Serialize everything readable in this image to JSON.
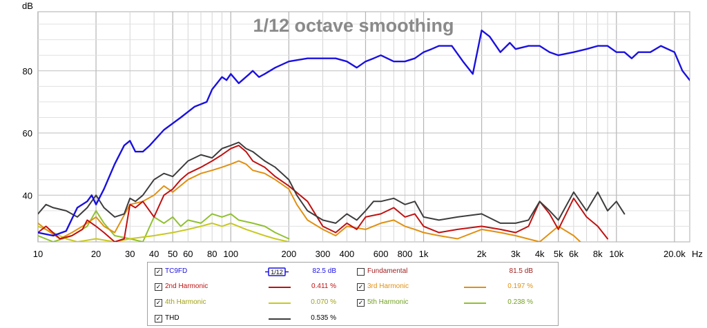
{
  "chart_data": {
    "type": "line",
    "title": "1/12 octave smoothing",
    "ylabel": "dB",
    "xunit": "Hz",
    "xscale": "log",
    "xlim": [
      10,
      24000
    ],
    "ylim": [
      25,
      99
    ],
    "grid": true,
    "x_ticks": [
      {
        "v": 10,
        "label": "10"
      },
      {
        "v": 20,
        "label": "20"
      },
      {
        "v": 30,
        "label": "30"
      },
      {
        "v": 40,
        "label": "40"
      },
      {
        "v": 50,
        "label": "50"
      },
      {
        "v": 60,
        "label": "60"
      },
      {
        "v": 80,
        "label": "80"
      },
      {
        "v": 100,
        "label": "100"
      },
      {
        "v": 200,
        "label": "200"
      },
      {
        "v": 300,
        "label": "300"
      },
      {
        "v": 400,
        "label": "400"
      },
      {
        "v": 600,
        "label": "600"
      },
      {
        "v": 800,
        "label": "800"
      },
      {
        "v": 1000,
        "label": "1k"
      },
      {
        "v": 2000,
        "label": "2k"
      },
      {
        "v": 3000,
        "label": "3k"
      },
      {
        "v": 4000,
        "label": "4k"
      },
      {
        "v": 5000,
        "label": "5k"
      },
      {
        "v": 6000,
        "label": "6k"
      },
      {
        "v": 8000,
        "label": "8k"
      },
      {
        "v": 10000,
        "label": "10k"
      },
      {
        "v": 20000,
        "label": "20.0k"
      }
    ],
    "y_ticks": [
      40,
      60,
      80
    ],
    "series": [
      {
        "name": "TC9FD",
        "color": "#1a10e0",
        "points": [
          [
            10,
            28
          ],
          [
            12,
            27
          ],
          [
            14,
            28.5
          ],
          [
            16,
            36
          ],
          [
            18,
            38
          ],
          [
            19,
            40
          ],
          [
            20,
            37
          ],
          [
            22,
            42
          ],
          [
            25,
            50
          ],
          [
            28,
            56
          ],
          [
            30,
            57.5
          ],
          [
            32,
            54
          ],
          [
            35,
            54
          ],
          [
            38,
            56
          ],
          [
            45,
            61
          ],
          [
            55,
            65
          ],
          [
            65,
            68.5
          ],
          [
            75,
            70
          ],
          [
            80,
            74
          ],
          [
            90,
            78
          ],
          [
            95,
            77
          ],
          [
            100,
            79
          ],
          [
            110,
            76
          ],
          [
            125,
            79
          ],
          [
            130,
            80
          ],
          [
            140,
            78
          ],
          [
            150,
            79
          ],
          [
            170,
            81
          ],
          [
            200,
            83
          ],
          [
            250,
            84
          ],
          [
            300,
            84
          ],
          [
            350,
            84
          ],
          [
            400,
            83
          ],
          [
            450,
            81
          ],
          [
            500,
            83
          ],
          [
            550,
            84
          ],
          [
            600,
            85
          ],
          [
            700,
            83
          ],
          [
            800,
            83
          ],
          [
            900,
            84
          ],
          [
            1000,
            86
          ],
          [
            1100,
            87
          ],
          [
            1200,
            88
          ],
          [
            1400,
            88
          ],
          [
            1600,
            83
          ],
          [
            1800,
            79
          ],
          [
            2000,
            93
          ],
          [
            2200,
            91
          ],
          [
            2500,
            86
          ],
          [
            2800,
            89
          ],
          [
            3000,
            87
          ],
          [
            3500,
            88
          ],
          [
            4000,
            88
          ],
          [
            4500,
            86
          ],
          [
            5000,
            85
          ],
          [
            6000,
            86
          ],
          [
            7000,
            87
          ],
          [
            8000,
            88
          ],
          [
            9000,
            88
          ],
          [
            10000,
            86
          ],
          [
            11000,
            86
          ],
          [
            12000,
            84
          ],
          [
            13000,
            86
          ],
          [
            15000,
            86
          ],
          [
            17000,
            88
          ],
          [
            20000,
            86
          ],
          [
            22000,
            80
          ],
          [
            24000,
            77
          ]
        ]
      },
      {
        "name": "2nd Harmonic",
        "color": "#c01010",
        "points": [
          [
            10,
            28
          ],
          [
            11,
            30
          ],
          [
            13,
            26
          ],
          [
            15,
            27
          ],
          [
            17,
            29
          ],
          [
            18,
            32
          ],
          [
            20,
            30
          ],
          [
            22,
            28
          ],
          [
            25,
            25
          ],
          [
            28,
            26
          ],
          [
            30,
            37
          ],
          [
            32,
            36
          ],
          [
            35,
            38
          ],
          [
            40,
            33
          ],
          [
            45,
            40
          ],
          [
            50,
            42
          ],
          [
            55,
            45
          ],
          [
            60,
            47
          ],
          [
            70,
            49
          ],
          [
            80,
            51
          ],
          [
            90,
            53
          ],
          [
            100,
            55
          ],
          [
            110,
            56
          ],
          [
            120,
            54
          ],
          [
            130,
            51
          ],
          [
            150,
            49
          ],
          [
            170,
            46
          ],
          [
            200,
            43
          ],
          [
            250,
            38
          ],
          [
            300,
            30
          ],
          [
            350,
            28
          ],
          [
            400,
            31
          ],
          [
            450,
            29
          ],
          [
            500,
            33
          ],
          [
            600,
            34
          ],
          [
            700,
            36
          ],
          [
            800,
            33
          ],
          [
            900,
            34
          ],
          [
            1000,
            30
          ],
          [
            1200,
            28
          ],
          [
            1500,
            29
          ],
          [
            2000,
            30
          ],
          [
            2500,
            29
          ],
          [
            3000,
            28
          ],
          [
            3500,
            30
          ],
          [
            4000,
            38
          ],
          [
            4500,
            34
          ],
          [
            5000,
            29
          ],
          [
            6000,
            39
          ],
          [
            7000,
            33
          ],
          [
            8000,
            30
          ],
          [
            9000,
            26
          ]
        ]
      },
      {
        "name": "3rd Harmonic",
        "color": "#e09010",
        "points": [
          [
            10,
            31
          ],
          [
            11,
            29
          ],
          [
            13,
            26
          ],
          [
            15,
            28
          ],
          [
            17,
            30
          ],
          [
            20,
            33
          ],
          [
            22,
            30
          ],
          [
            25,
            28
          ],
          [
            30,
            37
          ],
          [
            35,
            38
          ],
          [
            40,
            40
          ],
          [
            45,
            43
          ],
          [
            50,
            41
          ],
          [
            60,
            45
          ],
          [
            70,
            47
          ],
          [
            80,
            48
          ],
          [
            90,
            49
          ],
          [
            100,
            50
          ],
          [
            110,
            51
          ],
          [
            120,
            50
          ],
          [
            130,
            48
          ],
          [
            150,
            47
          ],
          [
            170,
            45
          ],
          [
            200,
            42
          ],
          [
            220,
            37
          ],
          [
            250,
            32
          ],
          [
            300,
            29
          ],
          [
            350,
            27
          ],
          [
            400,
            30
          ],
          [
            500,
            29
          ],
          [
            600,
            31
          ],
          [
            700,
            32
          ],
          [
            800,
            30
          ],
          [
            900,
            29
          ],
          [
            1000,
            28
          ],
          [
            1200,
            27
          ],
          [
            1500,
            26
          ],
          [
            2000,
            29
          ],
          [
            2500,
            28
          ],
          [
            3000,
            27
          ],
          [
            4000,
            25
          ],
          [
            5000,
            30
          ],
          [
            6000,
            27
          ],
          [
            6500,
            25
          ]
        ]
      },
      {
        "name": "4th Harmonic",
        "color": "#c8c820",
        "points": [
          [
            10,
            30
          ],
          [
            12,
            28
          ],
          [
            14,
            26
          ],
          [
            16,
            25
          ],
          [
            20,
            26
          ],
          [
            25,
            25
          ],
          [
            30,
            26
          ],
          [
            40,
            27
          ],
          [
            50,
            28
          ],
          [
            60,
            29
          ],
          [
            70,
            30
          ],
          [
            80,
            31
          ],
          [
            90,
            30
          ],
          [
            100,
            31
          ],
          [
            120,
            29
          ],
          [
            150,
            27
          ],
          [
            170,
            26
          ],
          [
            200,
            25
          ]
        ]
      },
      {
        "name": "5th Harmonic",
        "color": "#90c030",
        "points": [
          [
            10,
            27
          ],
          [
            12,
            25
          ],
          [
            15,
            27
          ],
          [
            18,
            30
          ],
          [
            20,
            35
          ],
          [
            22,
            31
          ],
          [
            25,
            27
          ],
          [
            30,
            26
          ],
          [
            35,
            25
          ],
          [
            40,
            33
          ],
          [
            45,
            31
          ],
          [
            50,
            33
          ],
          [
            55,
            30
          ],
          [
            60,
            32
          ],
          [
            70,
            31
          ],
          [
            80,
            34
          ],
          [
            90,
            33
          ],
          [
            100,
            34
          ],
          [
            110,
            32
          ],
          [
            130,
            31
          ],
          [
            150,
            30
          ],
          [
            170,
            28
          ],
          [
            200,
            26
          ]
        ]
      },
      {
        "name": "THD",
        "color": "#3c3c3c",
        "points": [
          [
            10,
            34
          ],
          [
            11,
            37
          ],
          [
            12,
            36
          ],
          [
            14,
            35
          ],
          [
            16,
            33
          ],
          [
            18,
            36
          ],
          [
            20,
            40
          ],
          [
            22,
            36
          ],
          [
            25,
            33
          ],
          [
            28,
            34
          ],
          [
            30,
            39
          ],
          [
            32,
            38
          ],
          [
            35,
            40
          ],
          [
            40,
            45
          ],
          [
            45,
            47
          ],
          [
            50,
            46
          ],
          [
            60,
            51
          ],
          [
            70,
            53
          ],
          [
            80,
            52
          ],
          [
            90,
            55
          ],
          [
            100,
            56
          ],
          [
            110,
            57
          ],
          [
            120,
            55
          ],
          [
            130,
            54
          ],
          [
            150,
            51
          ],
          [
            170,
            49
          ],
          [
            200,
            45
          ],
          [
            220,
            40
          ],
          [
            250,
            35
          ],
          [
            300,
            32
          ],
          [
            350,
            31
          ],
          [
            400,
            34
          ],
          [
            450,
            32
          ],
          [
            500,
            35
          ],
          [
            550,
            38
          ],
          [
            600,
            38
          ],
          [
            700,
            39
          ],
          [
            800,
            37
          ],
          [
            900,
            38
          ],
          [
            1000,
            33
          ],
          [
            1200,
            32
          ],
          [
            1500,
            33
          ],
          [
            2000,
            34
          ],
          [
            2500,
            31
          ],
          [
            3000,
            31
          ],
          [
            3500,
            32
          ],
          [
            4000,
            38
          ],
          [
            4500,
            35
          ],
          [
            5000,
            32
          ],
          [
            6000,
            41
          ],
          [
            7000,
            35
          ],
          [
            8000,
            41
          ],
          [
            9000,
            35
          ],
          [
            10000,
            38
          ],
          [
            11000,
            34
          ]
        ]
      }
    ]
  },
  "legend": {
    "items": [
      {
        "key": "tc9fd",
        "label": "TC9FD",
        "checked": true,
        "color": "#1a10e0",
        "value": "82.5 dB",
        "smoothing": "1/12"
      },
      {
        "key": "fundamental",
        "label": "Fundamental",
        "checked": false,
        "color": "#a02020",
        "value": "81.5 dB"
      },
      {
        "key": "h2",
        "label": "2nd Harmonic",
        "checked": true,
        "color": "#c01010",
        "value": "0.411 %"
      },
      {
        "key": "h3",
        "label": "3rd Harmonic",
        "checked": true,
        "color": "#e09010",
        "value": "0.197 %"
      },
      {
        "key": "h4",
        "label": "4th Harmonic",
        "checked": true,
        "color": "#c8c820",
        "value": "0.070 %"
      },
      {
        "key": "h5",
        "label": "5th Harmonic",
        "checked": true,
        "color": "#90c030",
        "value": "0.238 %"
      },
      {
        "key": "thd",
        "label": "THD",
        "checked": true,
        "color": "#3c3c3c",
        "value": "0.535 %"
      }
    ]
  }
}
